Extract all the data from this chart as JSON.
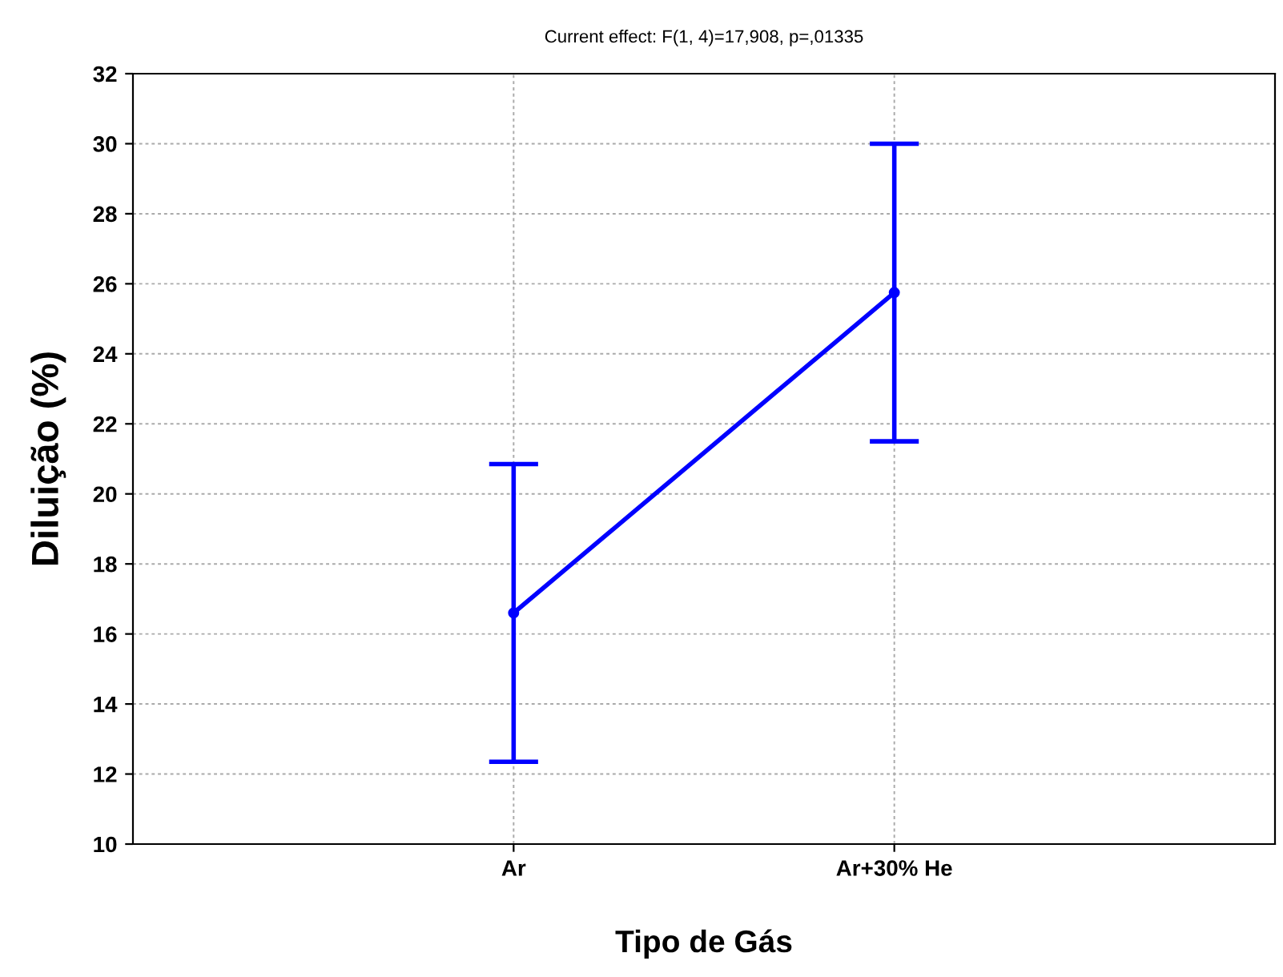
{
  "chart_data": {
    "type": "line",
    "title": "Current effect: F(1, 4)=17,908, p=,01335",
    "xlabel": "Tipo de Gás",
    "ylabel": "Diluição (%)",
    "categories": [
      "Ar",
      "Ar+30% He"
    ],
    "series": [
      {
        "color": "#0000ff",
        "values": [
          16.6,
          25.75
        ],
        "errors": [
          4.25,
          4.25
        ]
      }
    ],
    "ylim": [
      10,
      32
    ],
    "yticks": [
      10,
      12,
      14,
      16,
      18,
      20,
      22,
      24,
      26,
      28,
      30,
      32
    ],
    "grid": true,
    "marker": "circle",
    "line_style": "solid"
  }
}
